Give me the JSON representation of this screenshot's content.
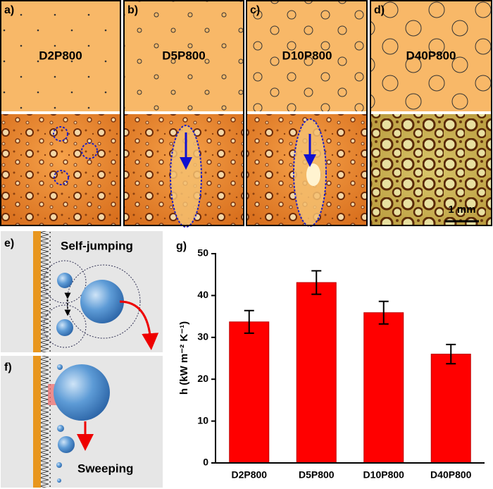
{
  "panels": [
    {
      "label": "a)",
      "name": "D2P800"
    },
    {
      "label": "b)",
      "name": "D5P800"
    },
    {
      "label": "c)",
      "name": "D10P800"
    },
    {
      "label": "d)",
      "name": "D40P800"
    }
  ],
  "scale_bar": "1 mm",
  "schematics": [
    {
      "label": "e)",
      "caption": "Self-jumping"
    },
    {
      "label": "f)",
      "caption": "Sweeping"
    }
  ],
  "chart_data": {
    "type": "bar",
    "label": "g)",
    "y_label": "h (kW m⁻² K⁻¹)",
    "categories": [
      "D2P800",
      "D5P800",
      "D10P800",
      "D40P800"
    ],
    "values": [
      33.7,
      43.1,
      35.9,
      26.0
    ],
    "errors": [
      2.7,
      2.8,
      2.7,
      2.3
    ],
    "color": "#ff0000",
    "ylim": [
      0,
      50
    ],
    "yticks": [
      0,
      10,
      20,
      30,
      40,
      50
    ]
  }
}
